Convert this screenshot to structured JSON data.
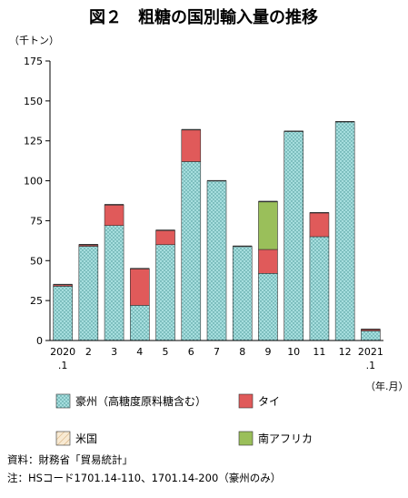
{
  "chart_data": {
    "type": "bar",
    "stacked": true,
    "title": "図２　粗糖の国別輸入量の推移",
    "ylabel": "（千トン）",
    "xlabel": "（年.月）",
    "ylim": [
      0,
      175
    ],
    "yticks": [
      0,
      25,
      50,
      75,
      100,
      125,
      150,
      175
    ],
    "grid": false,
    "legend_position": "bottom",
    "categories": [
      "2020\n.1",
      "2",
      "3",
      "4",
      "5",
      "6",
      "7",
      "8",
      "9",
      "10",
      "11",
      "12",
      "2021\n.1"
    ],
    "series": [
      {
        "name": "豪州（高糖度原料糖含む）",
        "color": "#8fd3d3",
        "values": [
          34,
          59,
          72,
          22,
          60,
          112,
          100,
          59,
          42,
          131,
          65,
          137,
          6
        ]
      },
      {
        "name": "タイ",
        "color": "#e05a5a",
        "values": [
          1,
          1,
          13,
          23,
          9,
          20,
          0,
          0,
          15,
          0,
          15,
          0,
          1
        ]
      },
      {
        "name": "米国",
        "color": "#f3dcb8",
        "values": [
          0,
          0,
          0,
          0,
          0,
          0,
          0,
          0,
          0,
          0,
          0,
          0,
          0
        ]
      },
      {
        "name": "南アフリカ",
        "color": "#9abf5a",
        "values": [
          0,
          0,
          0,
          0,
          0,
          0,
          0,
          0,
          30,
          0,
          0,
          0,
          0
        ]
      }
    ]
  },
  "notes": {
    "source": "資料：財務省「貿易統計」",
    "footnote": "注：HSコード1701.14-110、1701.14-200（豪州のみ）"
  }
}
